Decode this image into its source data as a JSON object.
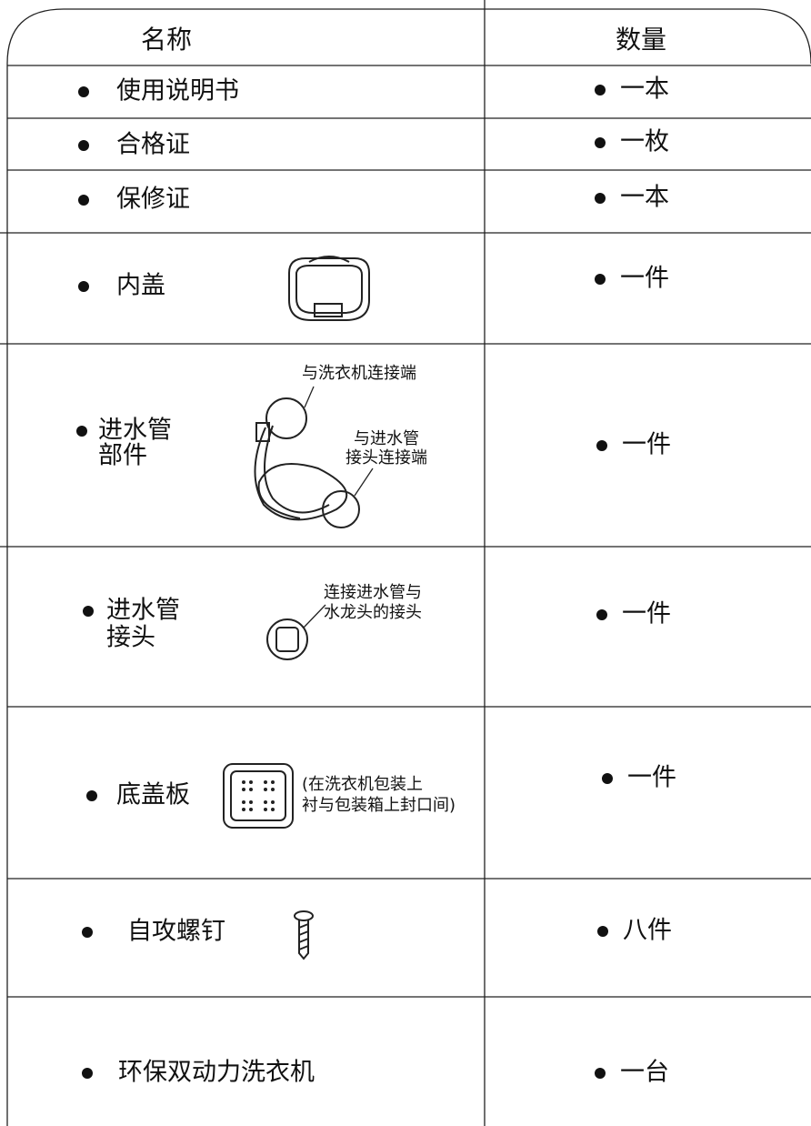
{
  "table": {
    "header": [
      "名称",
      "数量"
    ],
    "rows": [
      {
        "name": [
          "使用说明书"
        ],
        "quantity": "一本"
      },
      {
        "name": [
          "合格证"
        ],
        "quantity": "一枚"
      },
      {
        "name": [
          "保修证"
        ],
        "quantity": "一本"
      },
      {
        "name": [
          "内盖"
        ],
        "quantity": "一件"
      },
      {
        "name": [
          "进水管",
          "部件"
        ],
        "quantity": "一件",
        "notes": [
          [
            "与洗衣机连接端"
          ],
          [
            "与进水管",
            "接头连接端"
          ]
        ]
      },
      {
        "name": [
          "进水管",
          "接头"
        ],
        "quantity": "一件",
        "notes": [
          [
            "连接进水管与",
            "水龙头的接头"
          ]
        ]
      },
      {
        "name": [
          "底盖板"
        ],
        "quantity": "一件",
        "notes": [
          [
            "(在洗衣机包装上",
            "衬与包装箱上封口间)"
          ]
        ]
      },
      {
        "name": [
          "自攻螺钉"
        ],
        "quantity": "八件"
      },
      {
        "name": [
          "环保双动力洗衣机"
        ],
        "quantity": "一台"
      }
    ]
  }
}
